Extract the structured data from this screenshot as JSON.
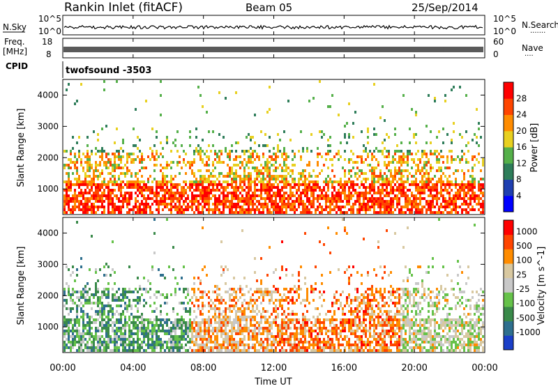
{
  "header": {
    "station": "Rankin Inlet (fitACF)",
    "beam": "Beam 05",
    "date": "25/Sep/2014"
  },
  "nsky_panel": {
    "left_label": "N.Sky",
    "left_ticks": [
      "10^5",
      "10^0"
    ],
    "right_ticks": [
      "10^5",
      "10^0"
    ],
    "right_label": "N.Search"
  },
  "freq_panel": {
    "left_label_line1": "Freq.",
    "left_label_line2": "[MHz]",
    "left_ticks": [
      "18",
      "8"
    ],
    "right_ticks": [
      "60",
      "0"
    ],
    "right_label": "Nave"
  },
  "cpid_panel": {
    "label": "CPID",
    "value": "twofsound -3503"
  },
  "chart_data": [
    {
      "type": "heatmap",
      "name": "power",
      "ylabel": "Slant Range [km]",
      "yticks": [
        "4000",
        "3000",
        "2000",
        "1000"
      ],
      "ylim": [
        180,
        4500
      ],
      "colorbar_label": "Power [dB]",
      "colorbar_ticks": [
        "28",
        "24",
        "20",
        "16",
        "12",
        "8",
        "4"
      ],
      "colors": [
        "#0000ff",
        "#1f3fb0",
        "#2e7d5a",
        "#55b04a",
        "#e8d020",
        "#ff8c00",
        "#ff4500",
        "#ff0000"
      ],
      "grid": false
    },
    {
      "type": "heatmap",
      "name": "velocity",
      "ylabel": "Slant Range [km]",
      "yticks": [
        "4000",
        "3000",
        "2000",
        "1000"
      ],
      "ylim": [
        180,
        4500
      ],
      "colorbar_label": "Velocity [m s^-1]",
      "colorbar_ticks": [
        "1000",
        "500",
        "100",
        "25",
        "-25",
        "-100",
        "-500",
        "-1000"
      ],
      "colors": [
        "#1a3fc8",
        "#2e6f8e",
        "#3a8a4a",
        "#66c24a",
        "#c8c8c8",
        "#d8c8a0",
        "#ff8c00",
        "#ff4500",
        "#ff0000"
      ],
      "grid": false
    }
  ],
  "xaxis": {
    "ticks": [
      "00:00",
      "04:00",
      "08:00",
      "12:00",
      "16:00",
      "20:00",
      "00:00"
    ],
    "label": "Time UT"
  }
}
